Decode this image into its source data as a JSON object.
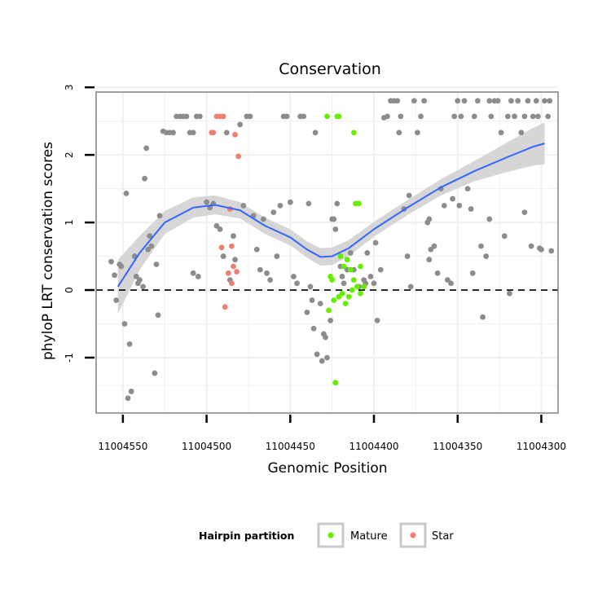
{
  "chart_data": {
    "type": "scatter",
    "title": "Conservation",
    "xlabel": "Genomic Position",
    "ylabel": "phyloP LRT conservation scores",
    "x_reversed": true,
    "xlim": [
      11004566,
      11004290
    ],
    "ylim": [
      -1.82,
      2.93
    ],
    "x_ticks": [
      11004550,
      11004500,
      11004450,
      11004400,
      11004350,
      11004300
    ],
    "x_tick_labels": [
      "11004550",
      "11004500",
      "11004450",
      "11004400",
      "11004350",
      "11004300"
    ],
    "y_ticks": [
      -1,
      0,
      1,
      2,
      3
    ],
    "y_tick_labels": [
      "-1",
      "0",
      "1",
      "2",
      "3"
    ],
    "hline": 0,
    "colors": {
      "other": "#8c8c8c",
      "Mature": "#66ee00",
      "Star": "#f07f72",
      "smooth_line": "#3366ff",
      "smooth_band": "#d6d6d6",
      "grid": "#f0f0f0"
    },
    "legend": {
      "title": "Hairpin partition",
      "position": "bottom",
      "entries": [
        {
          "label": "Mature",
          "color": "#66ee00"
        },
        {
          "label": "Star",
          "color": "#f07f72"
        }
      ]
    },
    "smooth": [
      {
        "x": 11004553,
        "y": 0.05,
        "lo": -0.35,
        "hi": 0.45
      },
      {
        "x": 11004540,
        "y": 0.55,
        "lo": 0.3,
        "hi": 0.8
      },
      {
        "x": 11004525,
        "y": 1.0,
        "lo": 0.83,
        "hi": 1.17
      },
      {
        "x": 11004508,
        "y": 1.22,
        "lo": 1.07,
        "hi": 1.37
      },
      {
        "x": 11004495,
        "y": 1.26,
        "lo": 1.12,
        "hi": 1.4
      },
      {
        "x": 11004480,
        "y": 1.18,
        "lo": 1.06,
        "hi": 1.3
      },
      {
        "x": 11004465,
        "y": 0.95,
        "lo": 0.83,
        "hi": 1.07
      },
      {
        "x": 11004450,
        "y": 0.78,
        "lo": 0.66,
        "hi": 0.9
      },
      {
        "x": 11004440,
        "y": 0.6,
        "lo": 0.48,
        "hi": 0.72
      },
      {
        "x": 11004432,
        "y": 0.49,
        "lo": 0.36,
        "hi": 0.62
      },
      {
        "x": 11004425,
        "y": 0.5,
        "lo": 0.37,
        "hi": 0.63
      },
      {
        "x": 11004415,
        "y": 0.62,
        "lo": 0.5,
        "hi": 0.74
      },
      {
        "x": 11004400,
        "y": 0.9,
        "lo": 0.79,
        "hi": 1.01
      },
      {
        "x": 11004380,
        "y": 1.22,
        "lo": 1.11,
        "hi": 1.33
      },
      {
        "x": 11004360,
        "y": 1.52,
        "lo": 1.4,
        "hi": 1.64
      },
      {
        "x": 11004340,
        "y": 1.76,
        "lo": 1.61,
        "hi": 1.91
      },
      {
        "x": 11004320,
        "y": 1.97,
        "lo": 1.75,
        "hi": 2.19
      },
      {
        "x": 11004305,
        "y": 2.12,
        "lo": 1.84,
        "hi": 2.4
      },
      {
        "x": 11004298,
        "y": 2.17,
        "lo": 1.86,
        "hi": 2.48
      }
    ],
    "points_other": [
      [
        11004557,
        0.42
      ],
      [
        11004555,
        0.22
      ],
      [
        11004554,
        -0.15
      ],
      [
        11004552,
        0.38
      ],
      [
        11004551,
        0.35
      ],
      [
        11004549,
        -0.5
      ],
      [
        11004548,
        1.43
      ],
      [
        11004547,
        -1.6
      ],
      [
        11004546,
        -0.8
      ],
      [
        11004545,
        -1.5
      ],
      [
        11004543,
        0.5
      ],
      [
        11004542,
        0.2
      ],
      [
        11004541,
        0.1
      ],
      [
        11004540,
        0.15
      ],
      [
        11004538,
        0.05
      ],
      [
        11004537,
        1.65
      ],
      [
        11004536,
        2.1
      ],
      [
        11004535,
        0.6
      ],
      [
        11004534,
        0.8
      ],
      [
        11004533,
        0.65
      ],
      [
        11004531,
        -1.23
      ],
      [
        11004530,
        0.38
      ],
      [
        11004529,
        -0.37
      ],
      [
        11004528,
        1.1
      ],
      [
        11004526,
        2.35
      ],
      [
        11004524,
        2.33
      ],
      [
        11004522,
        2.33
      ],
      [
        11004520,
        2.33
      ],
      [
        11004518,
        2.57
      ],
      [
        11004516,
        2.57
      ],
      [
        11004514,
        2.57
      ],
      [
        11004512,
        2.57
      ],
      [
        11004510,
        2.33
      ],
      [
        11004508,
        2.33
      ],
      [
        11004506,
        2.57
      ],
      [
        11004504,
        2.57
      ],
      [
        11004508,
        0.25
      ],
      [
        11004505,
        0.2
      ],
      [
        11004500,
        1.3
      ],
      [
        11004498,
        1.22
      ],
      [
        11004496,
        1.28
      ],
      [
        11004494,
        0.95
      ],
      [
        11004492,
        0.9
      ],
      [
        11004490,
        0.5
      ],
      [
        11004488,
        2.33
      ],
      [
        11004486,
        0.15
      ],
      [
        11004484,
        0.8
      ],
      [
        11004483,
        0.45
      ],
      [
        11004480,
        2.45
      ],
      [
        11004478,
        1.25
      ],
      [
        11004476,
        2.57
      ],
      [
        11004474,
        2.57
      ],
      [
        11004472,
        1.1
      ],
      [
        11004470,
        0.6
      ],
      [
        11004468,
        0.3
      ],
      [
        11004466,
        1.05
      ],
      [
        11004464,
        0.25
      ],
      [
        11004462,
        0.15
      ],
      [
        11004460,
        1.15
      ],
      [
        11004458,
        0.5
      ],
      [
        11004456,
        1.25
      ],
      [
        11004454,
        2.57
      ],
      [
        11004452,
        2.57
      ],
      [
        11004450,
        1.3
      ],
      [
        11004448,
        0.2
      ],
      [
        11004446,
        0.1
      ],
      [
        11004444,
        2.57
      ],
      [
        11004442,
        2.57
      ],
      [
        11004440,
        -0.33
      ],
      [
        11004439,
        1.28
      ],
      [
        11004438,
        0.05
      ],
      [
        11004437,
        -0.15
      ],
      [
        11004436,
        -0.57
      ],
      [
        11004435,
        2.33
      ],
      [
        11004434,
        -0.95
      ],
      [
        11004432,
        -0.2
      ],
      [
        11004431,
        -1.05
      ],
      [
        11004430,
        -0.65
      ],
      [
        11004429,
        -0.7
      ],
      [
        11004428,
        -1.0
      ],
      [
        11004426,
        -0.45
      ],
      [
        11004425,
        1.05
      ],
      [
        11004424,
        1.05
      ],
      [
        11004423,
        0.9
      ],
      [
        11004422,
        1.28
      ],
      [
        11004420,
        0.35
      ],
      [
        11004419,
        0.2
      ],
      [
        11004418,
        0.1
      ],
      [
        11004416,
        0.3
      ],
      [
        11004414,
        0.55
      ],
      [
        11004412,
        0.3
      ],
      [
        11004410,
        0.05
      ],
      [
        11004409,
        0.05
      ],
      [
        11004406,
        0.15
      ],
      [
        11004405,
        0.1
      ],
      [
        11004404,
        0.55
      ],
      [
        11004402,
        0.2
      ],
      [
        11004400,
        0.1
      ],
      [
        11004399,
        0.7
      ],
      [
        11004398,
        -0.45
      ],
      [
        11004396,
        0.3
      ],
      [
        11004394,
        2.55
      ],
      [
        11004392,
        2.57
      ],
      [
        11004390,
        2.8
      ],
      [
        11004388,
        2.8
      ],
      [
        11004386,
        2.8
      ],
      [
        11004385,
        2.33
      ],
      [
        11004384,
        2.57
      ],
      [
        11004382,
        1.2
      ],
      [
        11004380,
        0.5
      ],
      [
        11004379,
        1.4
      ],
      [
        11004378,
        0.05
      ],
      [
        11004376,
        2.8
      ],
      [
        11004374,
        2.33
      ],
      [
        11004372,
        2.57
      ],
      [
        11004370,
        2.8
      ],
      [
        11004368,
        1.0
      ],
      [
        11004367,
        1.05
      ],
      [
        11004366,
        0.6
      ],
      [
        11004364,
        0.65
      ],
      [
        11004362,
        0.25
      ],
      [
        11004360,
        1.5
      ],
      [
        11004358,
        1.25
      ],
      [
        11004356,
        0.15
      ],
      [
        11004354,
        0.1
      ],
      [
        11004352,
        2.57
      ],
      [
        11004350,
        2.8
      ],
      [
        11004348,
        2.57
      ],
      [
        11004346,
        2.8
      ],
      [
        11004344,
        1.5
      ],
      [
        11004342,
        1.2
      ],
      [
        11004340,
        2.57
      ],
      [
        11004338,
        2.8
      ],
      [
        11004336,
        0.65
      ],
      [
        11004335,
        -0.4
      ],
      [
        11004333,
        0.5
      ],
      [
        11004331,
        2.8
      ],
      [
        11004330,
        2.57
      ],
      [
        11004328,
        2.8
      ],
      [
        11004326,
        2.8
      ],
      [
        11004324,
        2.33
      ],
      [
        11004322,
        0.8
      ],
      [
        11004320,
        2.57
      ],
      [
        11004318,
        2.8
      ],
      [
        11004316,
        2.57
      ],
      [
        11004314,
        2.8
      ],
      [
        11004312,
        2.33
      ],
      [
        11004310,
        2.57
      ],
      [
        11004308,
        2.8
      ],
      [
        11004306,
        0.65
      ],
      [
        11004305,
        2.57
      ],
      [
        11004303,
        2.8
      ],
      [
        11004302,
        2.57
      ],
      [
        11004301,
        0.62
      ],
      [
        11004300,
        0.6
      ],
      [
        11004298,
        2.8
      ],
      [
        11004296,
        2.57
      ],
      [
        11004295,
        2.8
      ],
      [
        11004294,
        0.58
      ],
      [
        11004310,
        1.15
      ],
      [
        11004319,
        -0.05
      ],
      [
        11004349,
        1.25
      ],
      [
        11004353,
        1.35
      ],
      [
        11004341,
        0.25
      ],
      [
        11004331,
        1.05
      ],
      [
        11004367,
        0.45
      ]
    ],
    "points_mature": [
      [
        11004428,
        2.57
      ],
      [
        11004422,
        2.57
      ],
      [
        11004421,
        2.57
      ],
      [
        11004412,
        2.33
      ],
      [
        11004411,
        1.28
      ],
      [
        11004409,
        1.28
      ],
      [
        11004420,
        0.5
      ],
      [
        11004416,
        0.45
      ],
      [
        11004426,
        0.2
      ],
      [
        11004425,
        0.15
      ],
      [
        11004418,
        0.35
      ],
      [
        11004414,
        0.3
      ],
      [
        11004408,
        0.35
      ],
      [
        11004406,
        0.05
      ],
      [
        11004427,
        -0.3
      ],
      [
        11004424,
        -0.15
      ],
      [
        11004421,
        -0.1
      ],
      [
        11004419,
        -0.05
      ],
      [
        11004417,
        -0.2
      ],
      [
        11004415,
        -0.1
      ],
      [
        11004413,
        0.0
      ],
      [
        11004412,
        0.15
      ],
      [
        11004410,
        0.05
      ],
      [
        11004408,
        -0.05
      ],
      [
        11004423,
        -1.37
      ]
    ],
    "points_star": [
      [
        11004494,
        2.57
      ],
      [
        11004492,
        2.57
      ],
      [
        11004490,
        2.57
      ],
      [
        11004496,
        2.33
      ],
      [
        11004497,
        2.33
      ],
      [
        11004483,
        2.3
      ],
      [
        11004481,
        1.98
      ],
      [
        11004486,
        1.2
      ],
      [
        11004491,
        0.63
      ],
      [
        11004485,
        0.65
      ],
      [
        11004484,
        0.35
      ],
      [
        11004482,
        0.27
      ],
      [
        11004487,
        0.25
      ],
      [
        11004485,
        0.1
      ],
      [
        11004489,
        -0.25
      ]
    ]
  }
}
